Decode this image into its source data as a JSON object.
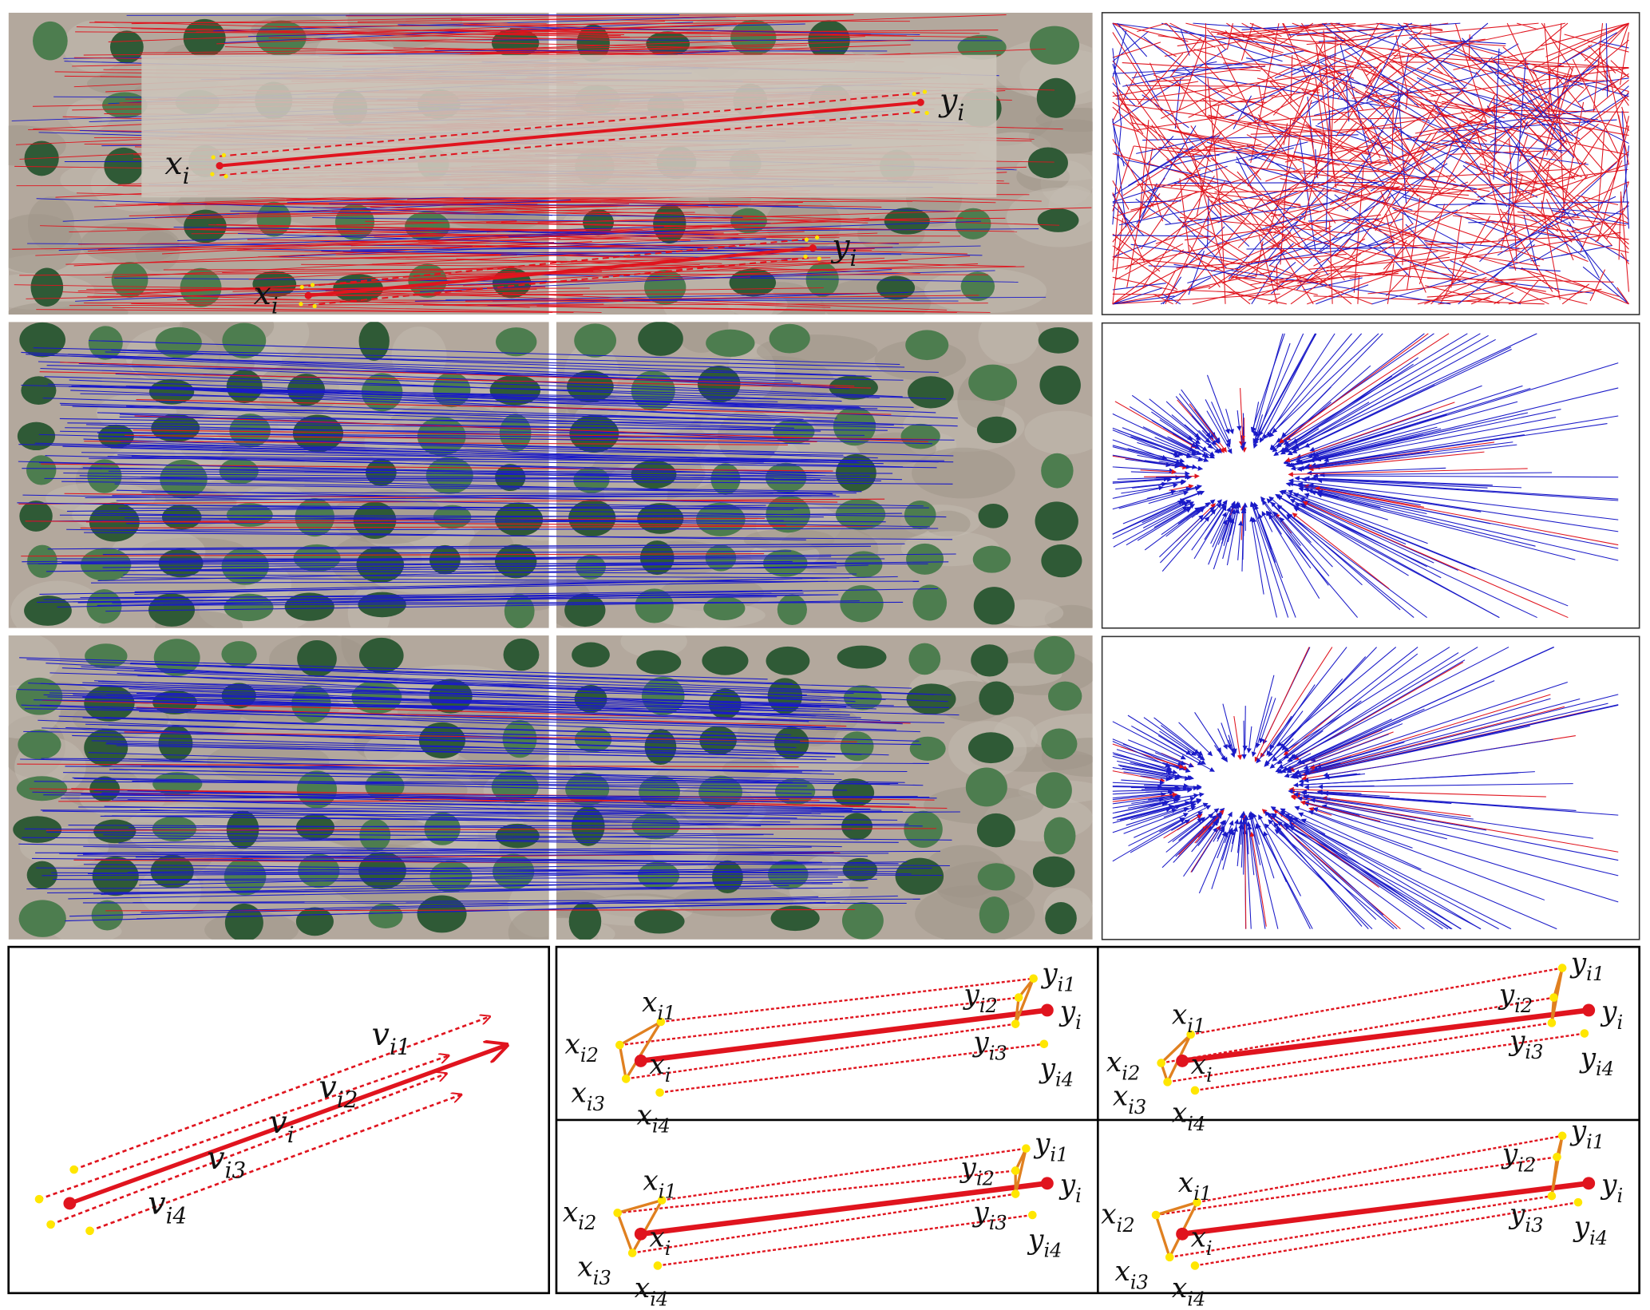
{
  "match_image_labels": [
    {
      "base": "x",
      "sub": "i"
    },
    {
      "base": "y",
      "sub": "i"
    },
    {
      "base": "x",
      "sub": "i"
    },
    {
      "base": "y",
      "sub": "i"
    }
  ],
  "vector_diagram": {
    "labels": [
      {
        "base": "v",
        "sub": "i1"
      },
      {
        "base": "v",
        "sub": "i2"
      },
      {
        "base": "v",
        "sub": "i"
      },
      {
        "base": "v",
        "sub": "i3"
      },
      {
        "base": "v",
        "sub": "i4"
      }
    ]
  },
  "triangle_diagrams": [
    {
      "labels": [
        {
          "base": "x",
          "sub": "i1"
        },
        {
          "base": "x",
          "sub": "i2"
        },
        {
          "base": "x",
          "sub": "i"
        },
        {
          "base": "x",
          "sub": "i3"
        },
        {
          "base": "x",
          "sub": "i4"
        },
        {
          "base": "y",
          "sub": "i1"
        },
        {
          "base": "y",
          "sub": "i2"
        },
        {
          "base": "y",
          "sub": "i"
        },
        {
          "base": "y",
          "sub": "i3"
        },
        {
          "base": "y",
          "sub": "i4"
        }
      ]
    },
    {
      "labels": [
        {
          "base": "x",
          "sub": "i1"
        },
        {
          "base": "x",
          "sub": "i2"
        },
        {
          "base": "x",
          "sub": "i"
        },
        {
          "base": "x",
          "sub": "i3"
        },
        {
          "base": "x",
          "sub": "i4"
        },
        {
          "base": "y",
          "sub": "i1"
        },
        {
          "base": "y",
          "sub": "i2"
        },
        {
          "base": "y",
          "sub": "i"
        },
        {
          "base": "y",
          "sub": "i3"
        },
        {
          "base": "y",
          "sub": "i4"
        }
      ]
    },
    {
      "labels": [
        {
          "base": "x",
          "sub": "i1"
        },
        {
          "base": "x",
          "sub": "i2"
        },
        {
          "base": "x",
          "sub": "i"
        },
        {
          "base": "x",
          "sub": "i3"
        },
        {
          "base": "x",
          "sub": "i4"
        },
        {
          "base": "y",
          "sub": "i1"
        },
        {
          "base": "y",
          "sub": "i2"
        },
        {
          "base": "y",
          "sub": "i"
        },
        {
          "base": "y",
          "sub": "i3"
        },
        {
          "base": "y",
          "sub": "i4"
        }
      ]
    },
    {
      "labels": [
        {
          "base": "x",
          "sub": "i1"
        },
        {
          "base": "x",
          "sub": "i2"
        },
        {
          "base": "x",
          "sub": "i"
        },
        {
          "base": "x",
          "sub": "i3"
        },
        {
          "base": "x",
          "sub": "i4"
        },
        {
          "base": "y",
          "sub": "i1"
        },
        {
          "base": "y",
          "sub": "i2"
        },
        {
          "base": "y",
          "sub": "i"
        },
        {
          "base": "y",
          "sub": "i3"
        },
        {
          "base": "y",
          "sub": "i4"
        }
      ]
    }
  ]
}
